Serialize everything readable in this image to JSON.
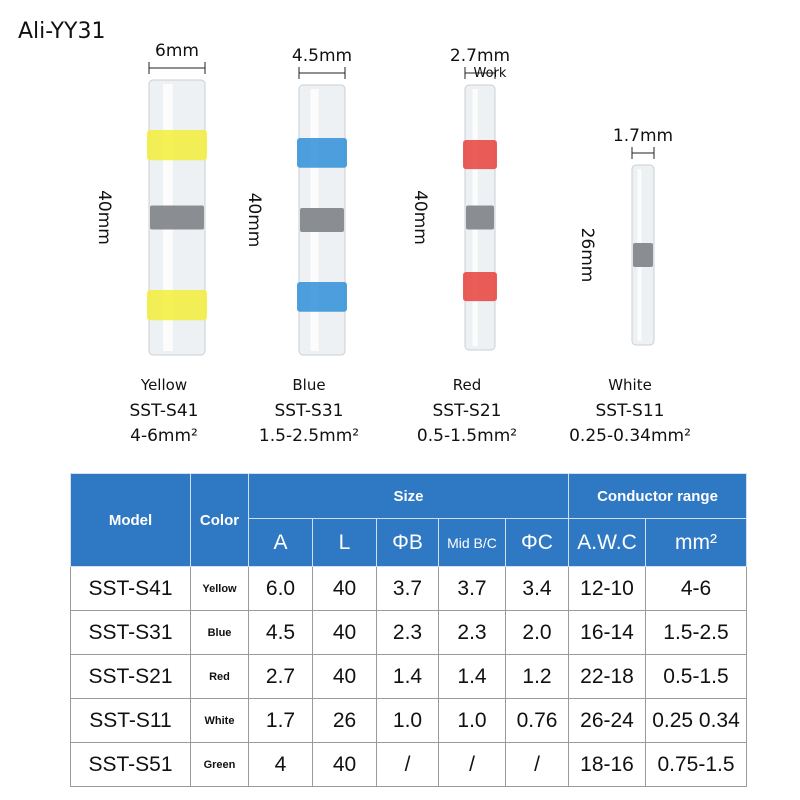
{
  "brand": "Ali-YY31",
  "products": [
    {
      "width": "6mm",
      "length": "40mm",
      "color": "Yellow",
      "model": "SST-S41",
      "range": "4-6mm²"
    },
    {
      "width": "4.5mm",
      "length": "40mm",
      "color": "Blue",
      "model": "SST-S31",
      "range": "1.5-2.5mm²"
    },
    {
      "width": "2.7mm",
      "note": "Work",
      "length": "40mm",
      "color": "Red",
      "model": "SST-S21",
      "range": "0.5-1.5mm²"
    },
    {
      "width": "1.7mm",
      "length": "26mm",
      "color": "White",
      "model": "SST-S11",
      "range": "0.25-0.34mm²"
    }
  ],
  "table": {
    "header": {
      "model": "Model",
      "color": "Color",
      "size": "Size",
      "conductor": "Conductor range",
      "columns": [
        "A",
        "L",
        "ΦB",
        "Mid B/C",
        "ΦC",
        "A.W.C",
        "mm²"
      ]
    },
    "rows": [
      [
        "SST-S41",
        "Yellow",
        "6.0",
        "40",
        "3.7",
        "3.7",
        "3.4",
        "12-10",
        "4-6"
      ],
      [
        "SST-S31",
        "Blue",
        "4.5",
        "40",
        "2.3",
        "2.3",
        "2.0",
        "16-14",
        "1.5-2.5"
      ],
      [
        "SST-S21",
        "Red",
        "2.7",
        "40",
        "1.4",
        "1.4",
        "1.2",
        "22-18",
        "0.5-1.5"
      ],
      [
        "SST-S11",
        "White",
        "1.7",
        "26",
        "1.0",
        "1.0",
        "0.76",
        "26-24",
        "0.25 0.34"
      ],
      [
        "SST-S51",
        "Green",
        "4",
        "40",
        "/",
        "/",
        "/",
        "18-16",
        "0.75-1.5"
      ]
    ]
  }
}
